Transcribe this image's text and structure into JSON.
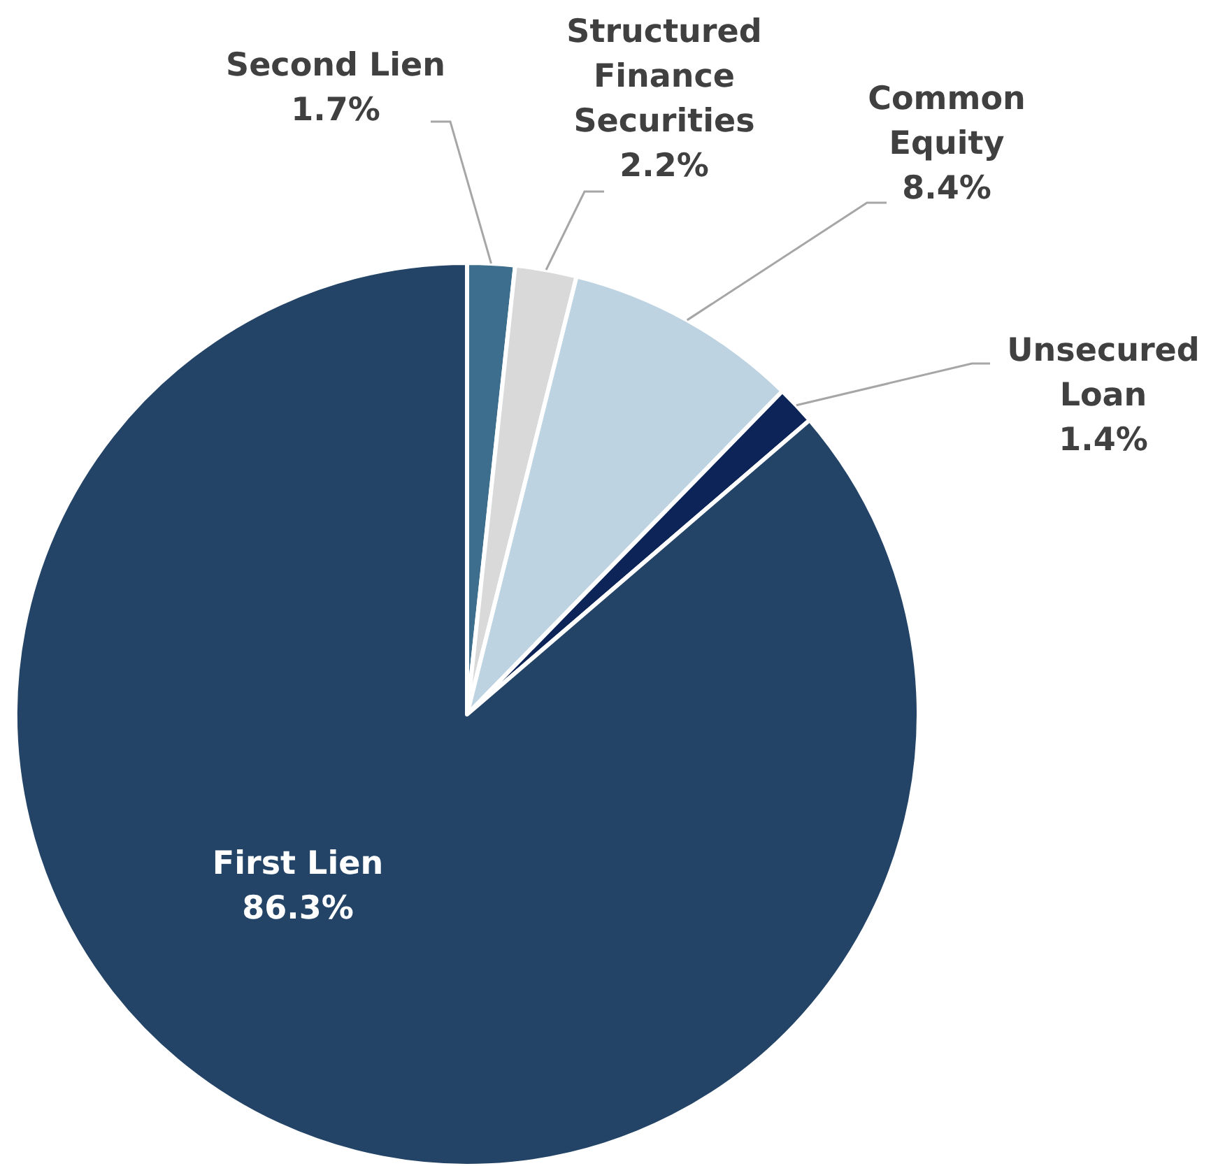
{
  "chart_data": {
    "type": "pie",
    "categories": [
      "Second Lien",
      "Structured Finance Securities",
      "Common Equity",
      "Unsecured Loan",
      "First Lien"
    ],
    "values": [
      1.7,
      2.2,
      8.4,
      1.4,
      86.3
    ],
    "colors": [
      "#3e6e8e",
      "#d9d9d9",
      "#bdd3e2",
      "#0c2458",
      "#234466"
    ],
    "value_labels": [
      "1.7%",
      "2.2%",
      "8.4%",
      "1.4%",
      "86.3%"
    ]
  }
}
